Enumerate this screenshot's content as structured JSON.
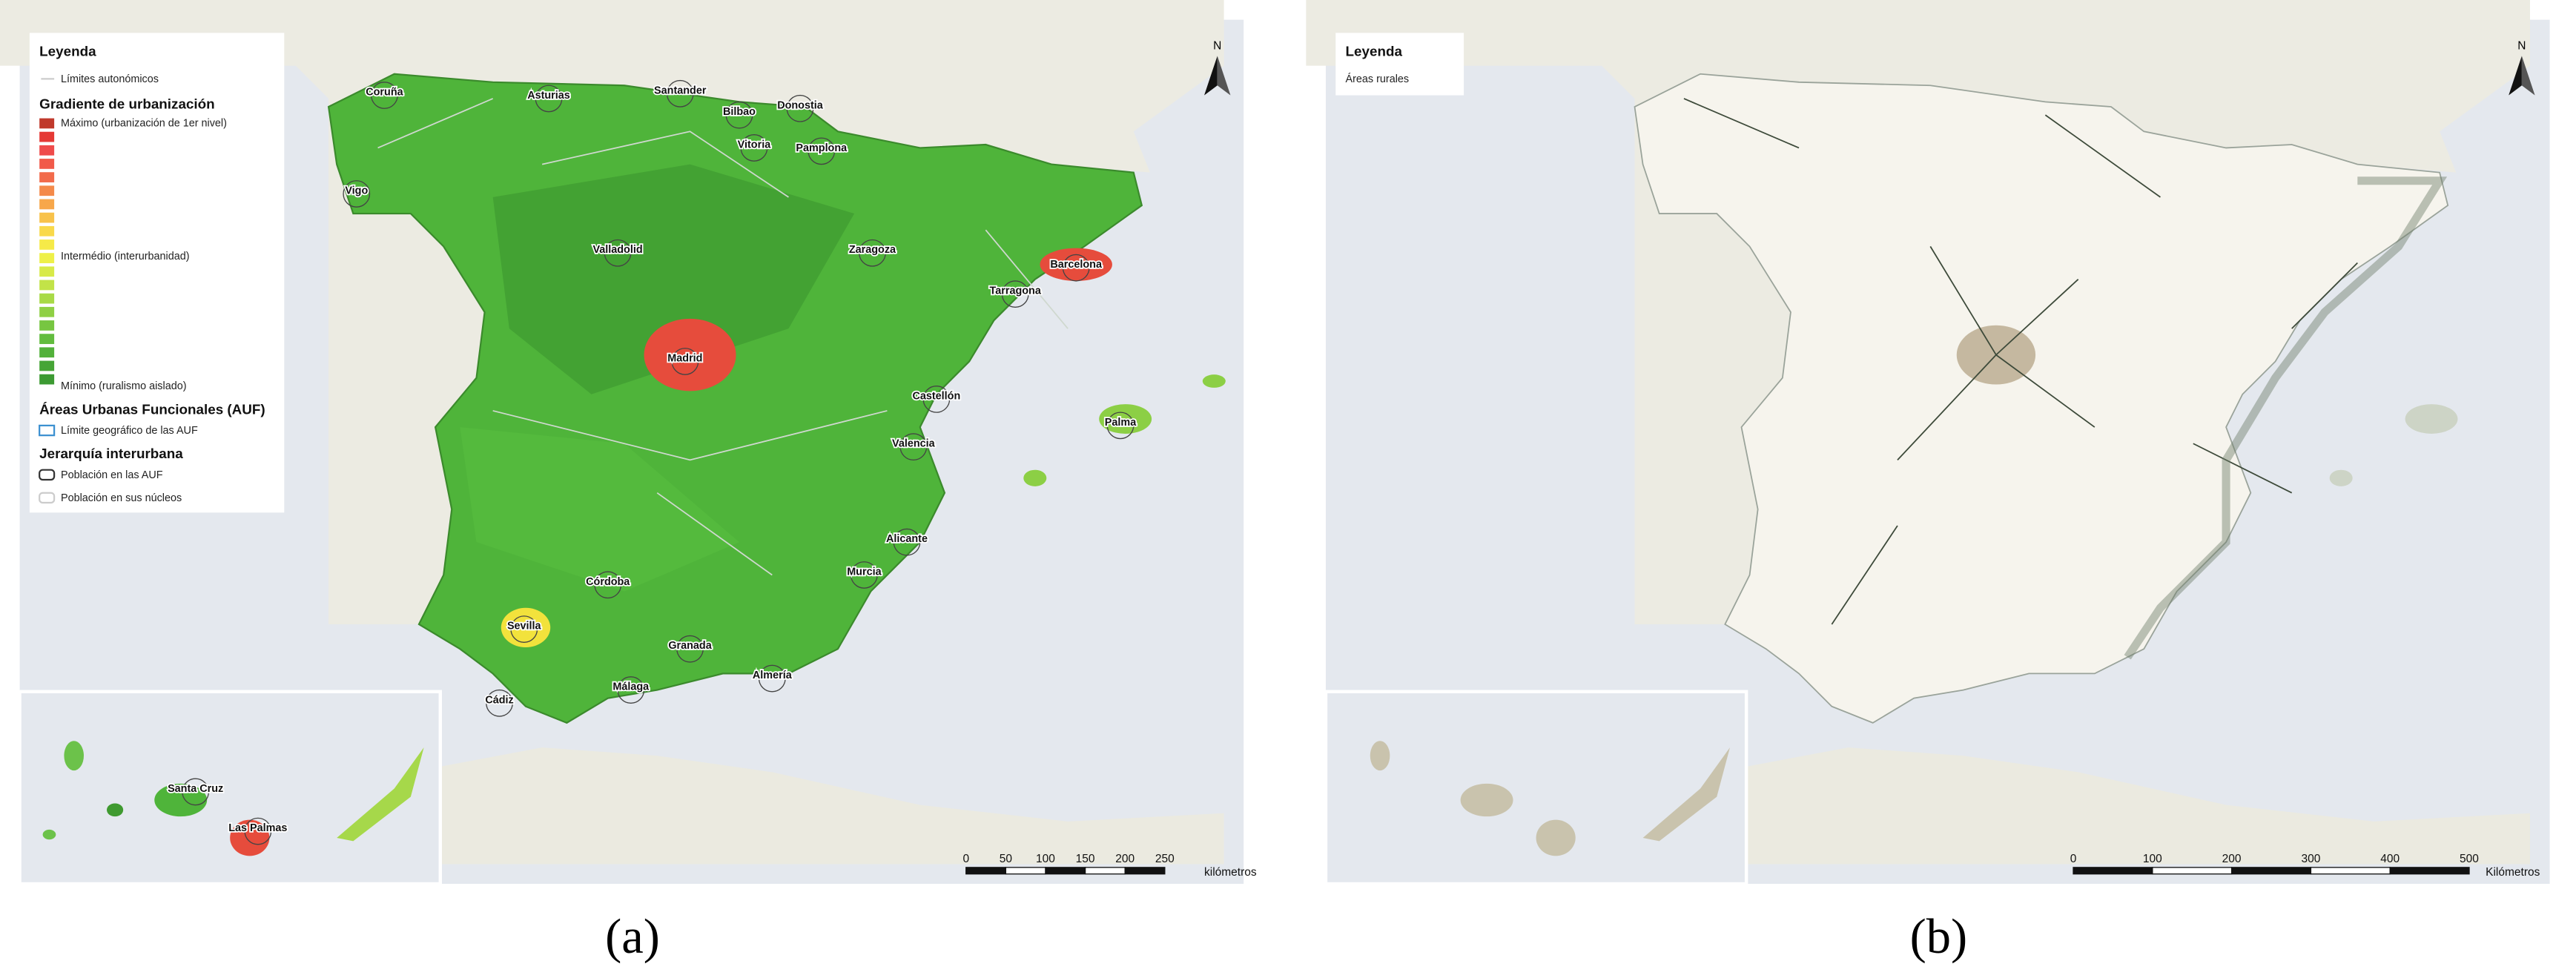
{
  "panels": [
    {
      "caption": "(a)",
      "north": "N",
      "legend": {
        "title": "Leyenda",
        "items": [
          "Límites autonómicos",
          "Gradiente de urbanización",
          "Máximo (urbanización de 1er nivel)",
          "Intermédio (interurbanidad)",
          "Mínimo (ruralismo aislado)",
          "Áreas Urbanas Funcionales (AUF)",
          "Límite geográfico de las AUF",
          "Jerarquía interurbana",
          "Población en las AUF",
          "Población en sus núcleos"
        ]
      },
      "cities": [
        "Coruña",
        "Asturias",
        "Santander",
        "Bilbao",
        "Donostia",
        "Vigo",
        "Vitoria",
        "Pamplona",
        "Valladolid",
        "Zaragoza",
        "Barcelona",
        "Tarragona",
        "Madrid",
        "Castellón",
        "Valencia",
        "Palma",
        "Alicante",
        "Córdoba",
        "Murcia",
        "Sevilla",
        "Granada",
        "Almería",
        "Málaga",
        "Cádiz",
        "Santa Cruz",
        "Las Palmas"
      ],
      "scale": {
        "ticks": [
          0,
          50,
          100,
          150,
          200,
          250
        ],
        "unit": "kilómetros"
      }
    },
    {
      "caption": "(b)",
      "north": "N",
      "legend": {
        "title": "Leyenda",
        "items": [
          "Áreas rurales"
        ]
      },
      "scale": {
        "ticks": [
          0,
          100,
          200,
          300,
          400,
          500
        ],
        "unit": "Kilómetros"
      }
    }
  ]
}
